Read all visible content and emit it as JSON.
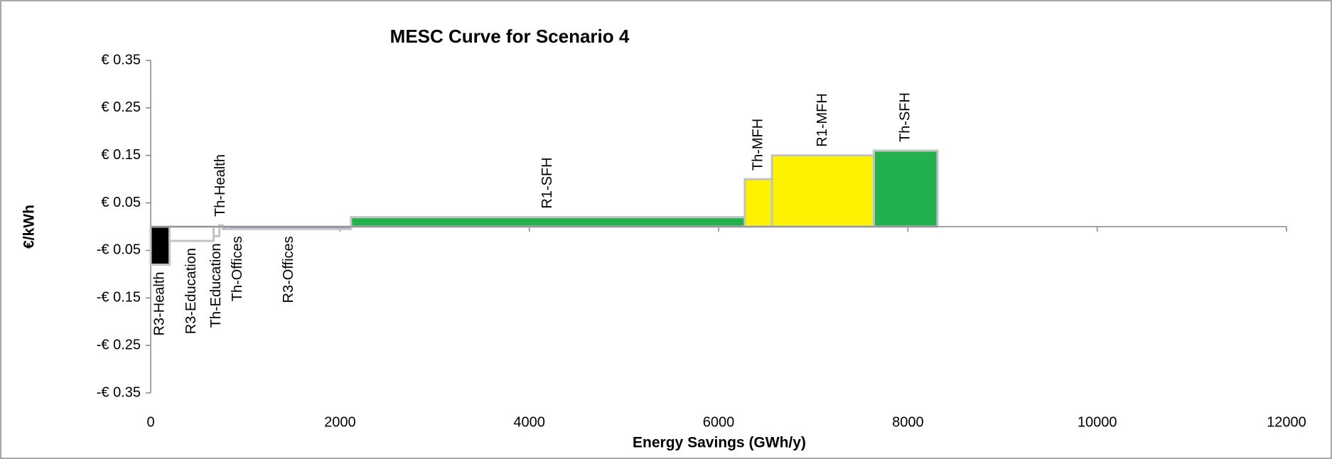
{
  "chart_data": {
    "type": "variable-width-bar",
    "title": "MESC Curve for Scenario 4",
    "x_label": "Energy Savings (GWh/y)",
    "y_label": "€/kWh",
    "categories": [
      "R3-Health",
      "R3-Education",
      "Th-Education",
      "Th-Health",
      "Th-Offices",
      "R3-Offices",
      "R1-SFH",
      "Th-MFH",
      "R1-MFH",
      "Th-SFH"
    ],
    "widths": [
      200,
      465,
      60,
      35,
      50,
      1307,
      4160,
      287,
      1076,
      673
    ],
    "values": [
      -0.08,
      -0.03,
      -0.02,
      0.003,
      -0.005,
      -0.005,
      0.02,
      0.1,
      0.15,
      0.16
    ],
    "colors": [
      "#000000",
      "#ffffff",
      "#ffffff",
      "#000000",
      "#3f48cc",
      "#3f48cc",
      "#22b14c",
      "#fff200",
      "#fff200",
      "#22b14c"
    ],
    "outline": "#c3c3c3",
    "xlim": [
      0,
      12000
    ],
    "xticks": [
      0,
      2000,
      4000,
      6000,
      8000,
      10000,
      12000
    ],
    "ylim": [
      -0.35,
      0.35
    ],
    "yticks": [
      {
        "value": -0.35,
        "label": "-€ 0.35"
      },
      {
        "value": -0.25,
        "label": "-€ 0.25"
      },
      {
        "value": -0.15,
        "label": "-€ 0.15"
      },
      {
        "value": -0.05,
        "label": "-€ 0.05"
      },
      {
        "value": 0.05,
        "label": "€ 0.05"
      },
      {
        "value": 0.15,
        "label": "€ 0.15"
      },
      {
        "value": 0.25,
        "label": "€ 0.25"
      },
      {
        "value": 0.35,
        "label": "€ 0.35"
      }
    ]
  }
}
